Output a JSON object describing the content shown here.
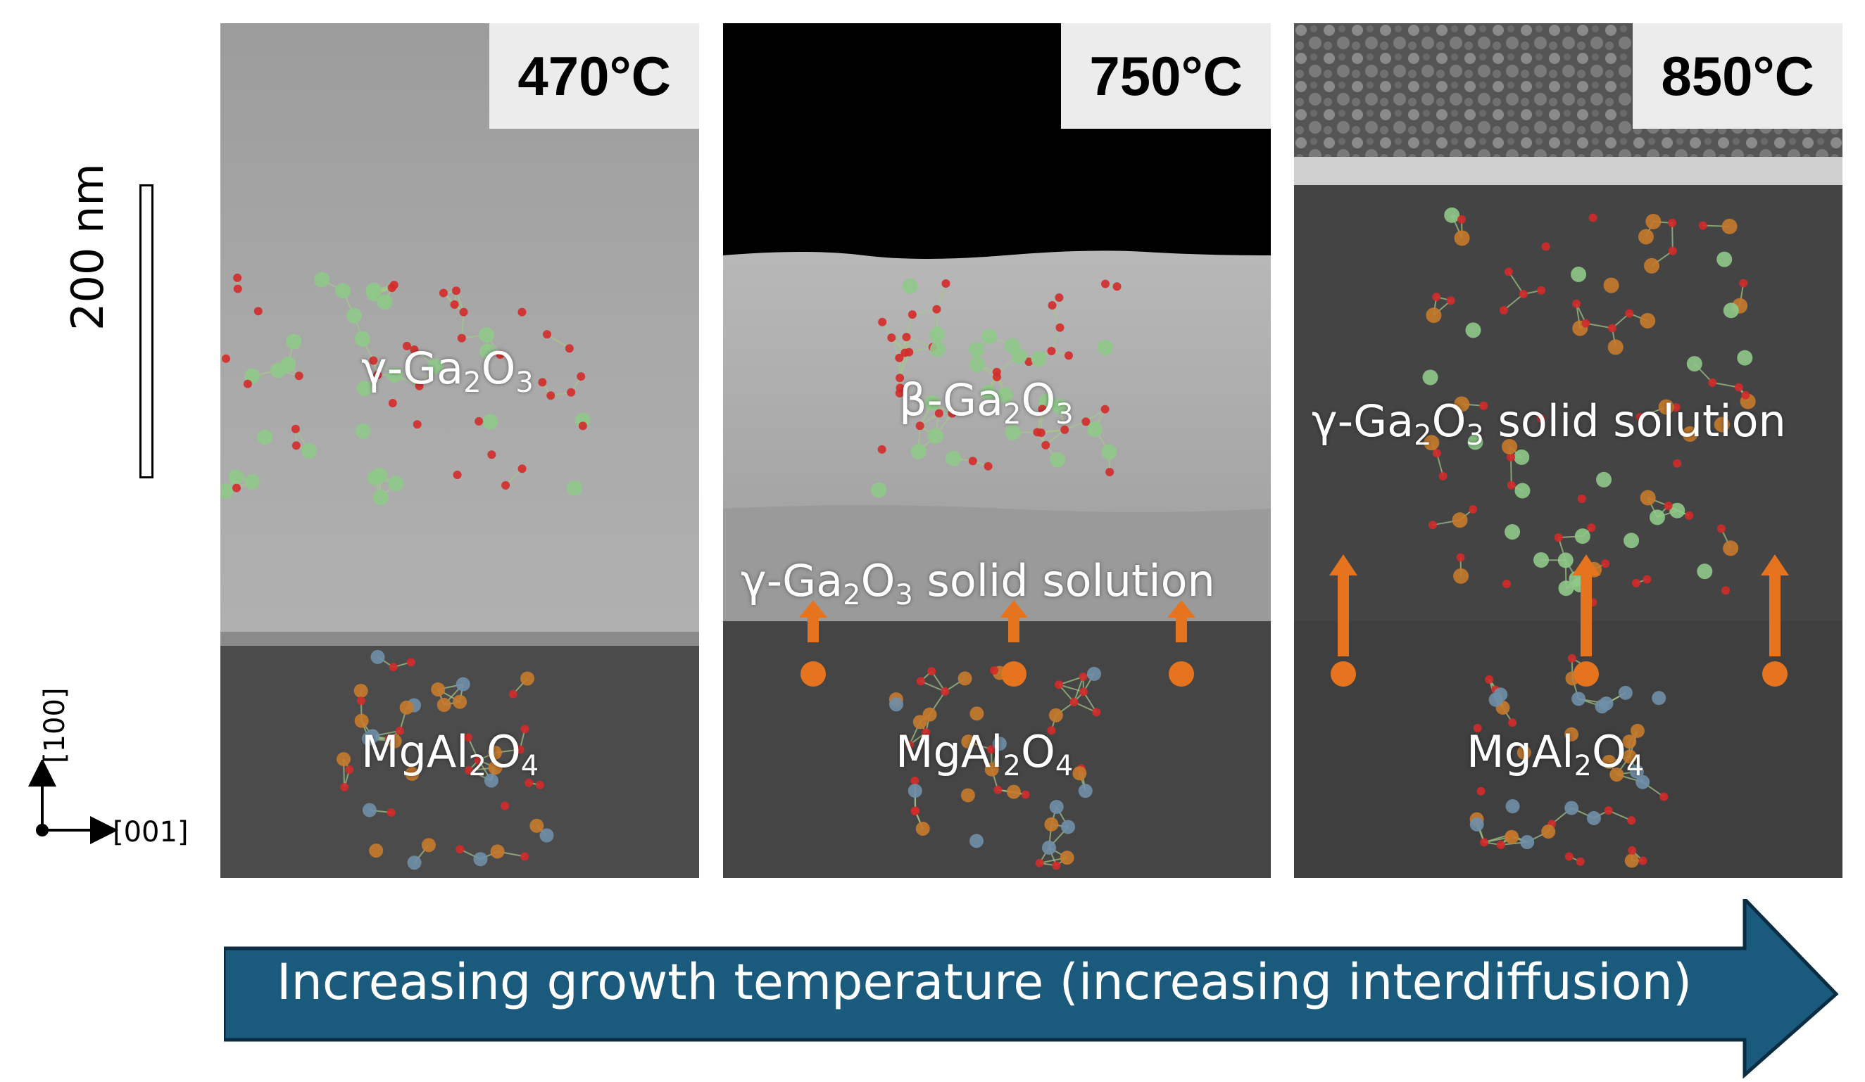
{
  "scale_bar": {
    "label": "200 nm"
  },
  "axes": {
    "vertical": "[100]",
    "horizontal": "[001]"
  },
  "panels": [
    {
      "temperature": "470°C",
      "film": {
        "prefix": "γ-Ga",
        "sub1": "2",
        "mid": "O",
        "sub2": "3",
        "suffix": ""
      },
      "substrate": {
        "prefix": "MgAl",
        "sub1": "2",
        "mid": "O",
        "sub2": "4"
      }
    },
    {
      "temperature": "750°C",
      "film": {
        "prefix": "β-Ga",
        "sub1": "2",
        "mid": "O",
        "sub2": "3",
        "suffix": ""
      },
      "interlayer": {
        "prefix": "γ-Ga",
        "sub1": "2",
        "mid": "O",
        "sub2": "3",
        "suffix": " solid solution"
      },
      "substrate": {
        "prefix": "MgAl",
        "sub1": "2",
        "mid": "O",
        "sub2": "4"
      }
    },
    {
      "temperature": "850°C",
      "film": {
        "prefix": "γ-Ga",
        "sub1": "2",
        "mid": "O",
        "sub2": "3",
        "suffix": " solid solution"
      },
      "substrate": {
        "prefix": "MgAl",
        "sub1": "2",
        "mid": "O",
        "sub2": "4"
      }
    }
  ],
  "bottom_arrow": {
    "text": "Increasing growth temperature (increasing interdiffusion)",
    "color": "#1a5a7c"
  },
  "colors": {
    "ga_atom": "#8fc98a",
    "o_atom": "#d42a2a",
    "mg_atom": "#c77a2c",
    "al_atom": "#6f8fa8",
    "diffusion_arrow": "#e6741e"
  }
}
